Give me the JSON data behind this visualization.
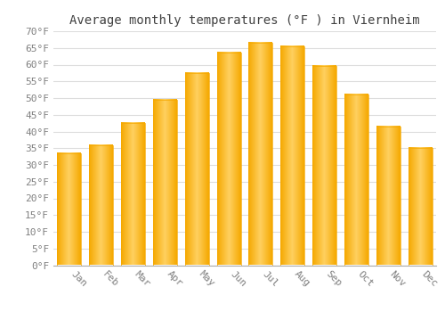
{
  "title": "Average monthly temperatures (°F ) in Viernheim",
  "months": [
    "Jan",
    "Feb",
    "Mar",
    "Apr",
    "May",
    "Jun",
    "Jul",
    "Aug",
    "Sep",
    "Oct",
    "Nov",
    "Dec"
  ],
  "values": [
    33.5,
    36.0,
    42.5,
    49.5,
    57.5,
    63.5,
    66.5,
    65.5,
    59.5,
    51.0,
    41.5,
    35.0
  ],
  "bar_color_center": "#FFD060",
  "bar_color_edge": "#F5A800",
  "bar_color_bottom": "#F0A000",
  "background_color": "#FFFFFF",
  "grid_color": "#DDDDDD",
  "text_color": "#808080",
  "title_color": "#404040",
  "ylim": [
    0,
    70
  ],
  "yticks": [
    0,
    5,
    10,
    15,
    20,
    25,
    30,
    35,
    40,
    45,
    50,
    55,
    60,
    65,
    70
  ],
  "title_fontsize": 10,
  "tick_fontsize": 8,
  "font_family": "monospace"
}
